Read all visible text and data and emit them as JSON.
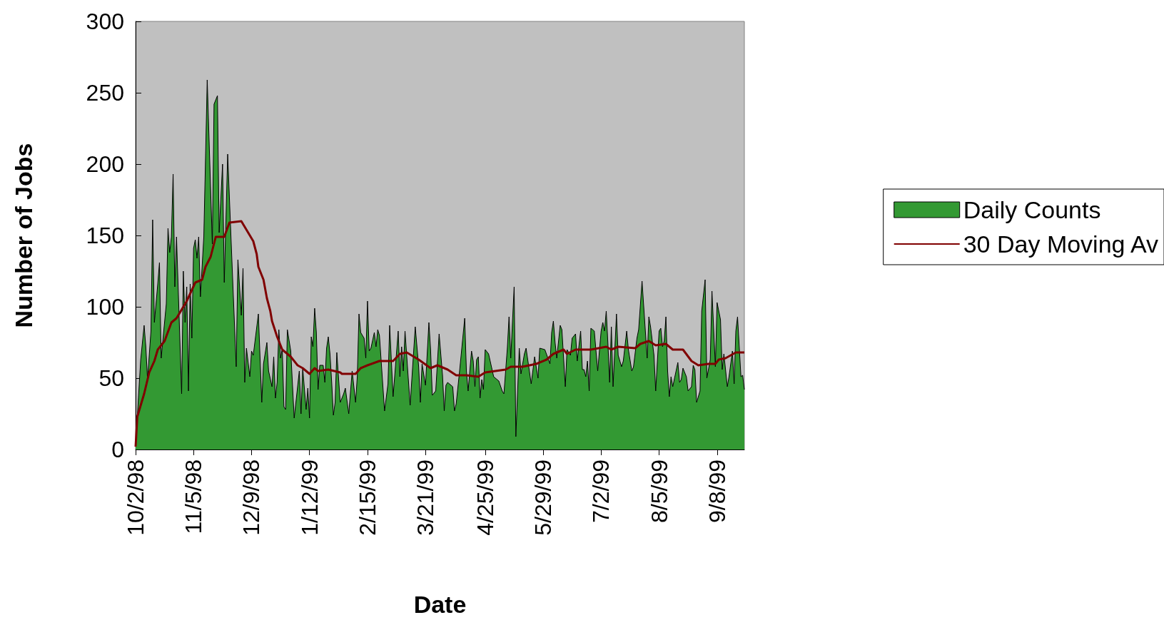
{
  "chart_data": {
    "type": "area",
    "xlabel": "Date",
    "ylabel": "Number of Jobs",
    "xlim": [
      "1998-10-02",
      "1999-09-24"
    ],
    "ylim": [
      0,
      300
    ],
    "yticks": [
      0,
      50,
      100,
      150,
      200,
      250,
      300
    ],
    "xticks": [
      {
        "value": "1998-10-02",
        "label": "10/2/98"
      },
      {
        "value": "1998-11-05",
        "label": "11/5/98"
      },
      {
        "value": "1998-12-09",
        "label": "12/9/98"
      },
      {
        "value": "1999-01-12",
        "label": "1/12/99"
      },
      {
        "value": "1999-02-15",
        "label": "2/15/99"
      },
      {
        "value": "1999-03-21",
        "label": "3/21/99"
      },
      {
        "value": "1999-04-25",
        "label": "4/25/99"
      },
      {
        "value": "1999-05-29",
        "label": "5/29/99"
      },
      {
        "value": "1999-07-02",
        "label": "7/2/99"
      },
      {
        "value": "1999-08-05",
        "label": "8/5/99"
      },
      {
        "value": "1999-09-08",
        "label": "9/8/99"
      }
    ],
    "grid": false,
    "legend": "right",
    "marker": "none",
    "line_style": "solid",
    "series": [
      {
        "name": "Daily Counts",
        "color": "#339933",
        "x": [
          "1998-10-02",
          "1998-10-05",
          "1998-10-07",
          "1998-10-08",
          "1998-10-09",
          "1998-10-11",
          "1998-10-12",
          "1998-10-13",
          "1998-10-15",
          "1998-10-16",
          "1998-10-17",
          "1998-10-20",
          "1998-10-21",
          "1998-10-22",
          "1998-10-23",
          "1998-10-24",
          "1998-10-25",
          "1998-10-26",
          "1998-10-29",
          "1998-10-30",
          "1998-10-31",
          "1998-11-01",
          "1998-11-02",
          "1998-11-03",
          "1998-11-04",
          "1998-11-05",
          "1998-11-06",
          "1998-11-07",
          "1998-11-08",
          "1998-11-09",
          "1998-11-11",
          "1998-11-13",
          "1998-11-16",
          "1998-11-17",
          "1998-11-19",
          "1998-11-20",
          "1998-11-22",
          "1998-11-23",
          "1998-11-25",
          "1998-11-28",
          "1998-11-30",
          "1998-12-01",
          "1998-12-03",
          "1998-12-04",
          "1998-12-05",
          "1998-12-06",
          "1998-12-08",
          "1998-12-09",
          "1998-12-10",
          "1998-12-13",
          "1998-12-15",
          "1998-12-16",
          "1998-12-18",
          "1998-12-19",
          "1998-12-21",
          "1998-12-22",
          "1998-12-23",
          "1998-12-24",
          "1998-12-25",
          "1998-12-26",
          "1998-12-27",
          "1998-12-28",
          "1998-12-29",
          "1998-12-30",
          "1999-01-01",
          "1999-01-03",
          "1999-01-06",
          "1999-01-07",
          "1999-01-08",
          "1999-01-10",
          "1999-01-11",
          "1999-01-12",
          "1999-01-13",
          "1999-01-14",
          "1999-01-15",
          "1999-01-16",
          "1999-01-17",
          "1999-01-18",
          "1999-01-20",
          "1999-01-21",
          "1999-01-22",
          "1999-01-23",
          "1999-01-24",
          "1999-01-25",
          "1999-01-26",
          "1999-01-27",
          "1999-01-28",
          "1999-01-30",
          "1999-02-01",
          "1999-02-02",
          "1999-02-04",
          "1999-02-06",
          "1999-02-08",
          "1999-02-09",
          "1999-02-10",
          "1999-02-11",
          "1999-02-13",
          "1999-02-14",
          "1999-02-15",
          "1999-02-16",
          "1999-02-17",
          "1999-02-19",
          "1999-02-20",
          "1999-02-21",
          "1999-02-22",
          "1999-02-25",
          "1999-02-27",
          "1999-02-28",
          "1999-03-02",
          "1999-03-05",
          "1999-03-06",
          "1999-03-07",
          "1999-03-08",
          "1999-03-09",
          "1999-03-12",
          "1999-03-15",
          "1999-03-17",
          "1999-03-18",
          "1999-03-19",
          "1999-03-21",
          "1999-03-23",
          "1999-03-24",
          "1999-03-25",
          "1999-03-27",
          "1999-03-29",
          "1999-03-31",
          "1999-04-01",
          "1999-04-02",
          "1999-04-03",
          "1999-04-06",
          "1999-04-07",
          "1999-04-08",
          "1999-04-10",
          "1999-04-13",
          "1999-04-14",
          "1999-04-15",
          "1999-04-17",
          "1999-04-18",
          "1999-04-19",
          "1999-04-20",
          "1999-04-21",
          "1999-04-22",
          "1999-04-23",
          "1999-04-24",
          "1999-04-25",
          "1999-04-27",
          "1999-04-30",
          "1999-05-03",
          "1999-05-05",
          "1999-05-06",
          "1999-05-08",
          "1999-05-09",
          "1999-05-10",
          "1999-05-12",
          "1999-05-13",
          "1999-05-15",
          "1999-05-16",
          "1999-05-18",
          "1999-05-19",
          "1999-05-22",
          "1999-05-24",
          "1999-05-26",
          "1999-05-27",
          "1999-05-30",
          "1999-06-02",
          "1999-06-03",
          "1999-06-04",
          "1999-06-05",
          "1999-06-06",
          "1999-06-08",
          "1999-06-09",
          "1999-06-11",
          "1999-06-12",
          "1999-06-14",
          "1999-06-15",
          "1999-06-17",
          "1999-06-18",
          "1999-06-20",
          "1999-06-21",
          "1999-06-22",
          "1999-06-23",
          "1999-06-24",
          "1999-06-25",
          "1999-06-26",
          "1999-06-28",
          "1999-06-30",
          "1999-07-02",
          "1999-07-03",
          "1999-07-04",
          "1999-07-05",
          "1999-07-06",
          "1999-07-07",
          "1999-07-08",
          "1999-07-09",
          "1999-07-11",
          "1999-07-12",
          "1999-07-14",
          "1999-07-15",
          "1999-07-17",
          "1999-07-18",
          "1999-07-20",
          "1999-07-21",
          "1999-07-23",
          "1999-07-24",
          "1999-07-26",
          "1999-07-29",
          "1999-07-30",
          "1999-07-31",
          "1999-08-02",
          "1999-08-03",
          "1999-08-05",
          "1999-08-06",
          "1999-08-07",
          "1999-08-08",
          "1999-08-09",
          "1999-08-10",
          "1999-08-11",
          "1999-08-12",
          "1999-08-13",
          "1999-08-16",
          "1999-08-17",
          "1999-08-18",
          "1999-08-19",
          "1999-08-21",
          "1999-08-22",
          "1999-08-24",
          "1999-08-25",
          "1999-08-26",
          "1999-08-27",
          "1999-08-29",
          "1999-08-30",
          "1999-09-01",
          "1999-09-02",
          "1999-09-04",
          "1999-09-05",
          "1999-09-07",
          "1999-09-08",
          "1999-09-10",
          "1999-09-11",
          "1999-09-12",
          "1999-09-14",
          "1999-09-15",
          "1999-09-17",
          "1999-09-18",
          "1999-09-19",
          "1999-09-20",
          "1999-09-22",
          "1999-09-23",
          "1999-09-24"
        ],
        "values": [
          3,
          63,
          87,
          72,
          49,
          83,
          161,
          89,
          116,
          131,
          64,
          102,
          155,
          138,
          149,
          193,
          114,
          149,
          39,
          125,
          89,
          114,
          41,
          116,
          78,
          141,
          147,
          134,
          149,
          107,
          149,
          259,
          144,
          242,
          248,
          152,
          200,
          117,
          207,
          117,
          58,
          133,
          94,
          127,
          47,
          71,
          51,
          69,
          66,
          95,
          33,
          60,
          75,
          55,
          44,
          65,
          36,
          47,
          84,
          64,
          71,
          30,
          28,
          84,
          69,
          22,
          55,
          25,
          57,
          28,
          43,
          22,
          79,
          72,
          99,
          82,
          42,
          59,
          59,
          47,
          71,
          79,
          67,
          47,
          24,
          33,
          68,
          33,
          39,
          43,
          25,
          55,
          33,
          51,
          95,
          82,
          78,
          64,
          104,
          69,
          71,
          82,
          72,
          84,
          80,
          27,
          46,
          87,
          37,
          83,
          51,
          72,
          55,
          83,
          31,
          86,
          58,
          33,
          60,
          45,
          89,
          70,
          38,
          41,
          81,
          52,
          27,
          45,
          47,
          44,
          27,
          32,
          55,
          92,
          55,
          41,
          69,
          62,
          44,
          63,
          65,
          36,
          49,
          42,
          70,
          67,
          51,
          48,
          41,
          39,
          71,
          93,
          64,
          114,
          9,
          71,
          53,
          67,
          71,
          46,
          65,
          50,
          71,
          70,
          60,
          82,
          90,
          75,
          64,
          87,
          84,
          44,
          70,
          66,
          78,
          81,
          62,
          83,
          56,
          56,
          51,
          62,
          41,
          85,
          83,
          55,
          83,
          89,
          83,
          97,
          74,
          47,
          86,
          44,
          95,
          66,
          58,
          62,
          83,
          70,
          55,
          58,
          78,
          84,
          118,
          64,
          93,
          86,
          66,
          41,
          83,
          85,
          72,
          76,
          93,
          55,
          37,
          51,
          44,
          61,
          47,
          49,
          57,
          51,
          41,
          44,
          59,
          56,
          33,
          41,
          97,
          119,
          50,
          63,
          111,
          58,
          103,
          91,
          56,
          67,
          44,
          51,
          69,
          46,
          83,
          93,
          51,
          52,
          42
        ]
      },
      {
        "name": "30 Day Moving Av",
        "type": "line",
        "color": "#800000",
        "x": [
          "1998-10-02",
          "1998-10-03",
          "1998-10-07",
          "1998-10-10",
          "1998-10-13",
          "1998-10-15",
          "1998-10-19",
          "1998-10-23",
          "1998-10-26",
          "1998-11-01",
          "1998-11-06",
          "1998-11-10",
          "1998-11-12",
          "1998-11-15",
          "1998-11-18",
          "1998-11-23",
          "1998-11-26",
          "1998-12-03",
          "1998-12-07",
          "1998-12-10",
          "1998-12-12",
          "1998-12-13",
          "1998-12-16",
          "1998-12-18",
          "1998-12-20",
          "1998-12-21",
          "1998-12-24",
          "1998-12-27",
          "1999-01-01",
          "1999-01-05",
          "1999-01-08",
          "1999-01-12",
          "1999-01-15",
          "1999-01-17",
          "1999-01-23",
          "1999-01-30",
          "1999-01-31",
          "1999-02-08",
          "1999-02-11",
          "1999-02-15",
          "1999-02-22",
          "1999-03-02",
          "1999-03-06",
          "1999-03-10",
          "1999-03-17",
          "1999-03-24",
          "1999-03-28",
          "1999-04-03",
          "1999-04-08",
          "1999-04-14",
          "1999-04-21",
          "1999-04-25",
          "1999-05-01",
          "1999-05-07",
          "1999-05-10",
          "1999-05-17",
          "1999-05-25",
          "1999-05-31",
          "1999-06-04",
          "1999-06-10",
          "1999-06-12",
          "1999-06-17",
          "1999-06-26",
          "1999-07-05",
          "1999-07-08",
          "1999-07-12",
          "1999-07-22",
          "1999-07-25",
          "1999-07-30",
          "1999-08-03",
          "1999-08-09",
          "1999-08-13",
          "1999-08-19",
          "1999-08-24",
          "1999-08-28",
          "1999-09-03",
          "1999-09-07",
          "1999-09-09",
          "1999-09-13",
          "1999-09-19",
          "1999-09-24"
        ],
        "values": [
          2,
          23,
          39,
          54,
          62,
          70,
          76,
          89,
          92,
          104,
          117,
          119,
          128,
          135,
          149,
          149,
          159,
          160,
          152,
          146,
          137,
          128,
          119,
          106,
          97,
          90,
          79,
          70,
          65,
          59,
          57,
          53,
          57,
          55,
          56,
          54,
          53,
          53,
          57,
          59,
          62,
          62,
          67,
          68,
          63,
          57,
          59,
          56,
          52,
          52,
          51,
          54,
          55,
          56,
          58,
          58,
          60,
          63,
          67,
          70,
          67,
          70,
          70,
          72,
          70,
          72,
          71,
          74,
          76,
          73,
          74,
          70,
          70,
          62,
          59,
          60,
          60,
          63,
          64,
          68,
          68
        ]
      }
    ]
  }
}
